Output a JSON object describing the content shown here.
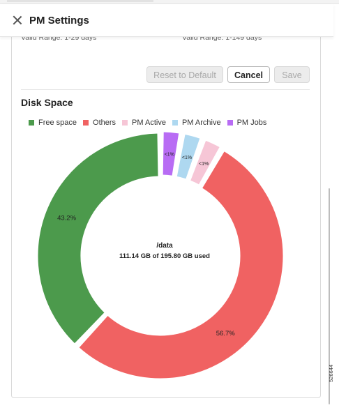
{
  "header": {
    "title": "PM Settings"
  },
  "ranges": {
    "left": "Valid Range: 1-29 days",
    "right": "Valid Range: 1-149 days"
  },
  "buttons": {
    "reset": "Reset to Default",
    "cancel": "Cancel",
    "save": "Save"
  },
  "disk": {
    "section_title": "Disk Space",
    "center_title": "/data",
    "center_usage": "111.14 GB of 195.80 GB used"
  },
  "figure_id": "526644",
  "colors": {
    "free": "#4c9a4c",
    "others": "#f06262",
    "active": "#f6c6d6",
    "archive": "#aed8f0",
    "jobs": "#b86cf4",
    "primary_button_border": "#b8b8b8"
  },
  "chart_data": {
    "type": "pie",
    "donut": true,
    "legend": "top",
    "legend_entries": [
      "Free space",
      "Others",
      "PM Active",
      "PM Archive",
      "PM Jobs"
    ],
    "slices": [
      {
        "name": "Free space",
        "value": 43.2,
        "label": "43.2%"
      },
      {
        "name": "Others",
        "value": 56.7,
        "label": "56.7%"
      },
      {
        "name": "PM Active",
        "value": 0.05,
        "label": "<1%"
      },
      {
        "name": "PM Archive",
        "value": 0.03,
        "label": "<1%"
      },
      {
        "name": "PM Jobs",
        "value": 0.02,
        "label": "<1%"
      }
    ]
  }
}
